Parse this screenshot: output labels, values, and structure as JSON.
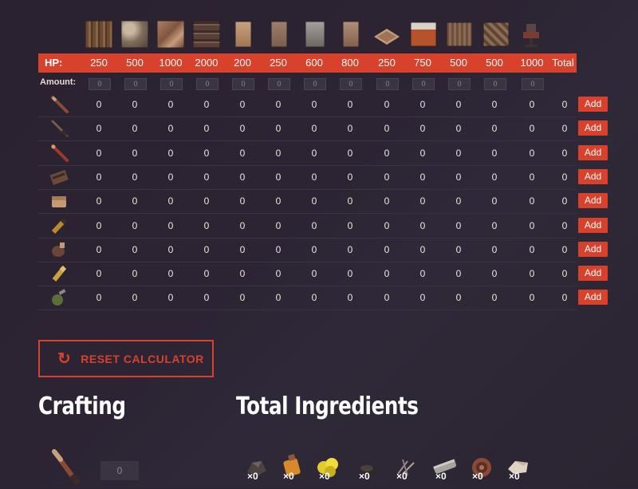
{
  "columns": [
    {
      "icon": "wood-wall-icon",
      "hp": "250",
      "amount": "0"
    },
    {
      "icon": "stone-wall-icon",
      "hp": "500",
      "amount": "0"
    },
    {
      "icon": "metal-wall-icon",
      "hp": "1000",
      "amount": "0"
    },
    {
      "icon": "armored-wall-icon",
      "hp": "2000",
      "amount": "0"
    },
    {
      "icon": "wooden-door-icon",
      "hp": "200",
      "amount": "0"
    },
    {
      "icon": "sheet-metal-door-icon",
      "hp": "250",
      "amount": "0"
    },
    {
      "icon": "garage-door-icon",
      "hp": "600",
      "amount": "0"
    },
    {
      "icon": "armored-door-icon",
      "hp": "800",
      "amount": "0"
    },
    {
      "icon": "floor-hatch-icon",
      "hp": "250",
      "amount": "0"
    },
    {
      "icon": "high-gate-icon",
      "hp": "750",
      "amount": "0"
    },
    {
      "icon": "high-wood-wall-icon",
      "hp": "500",
      "amount": "0"
    },
    {
      "icon": "high-stone-wall-icon",
      "hp": "500",
      "amount": "0"
    },
    {
      "icon": "auto-turret-icon",
      "hp": "1000",
      "amount": "0"
    }
  ],
  "header": {
    "hp_label": "HP:",
    "total_label": "Total",
    "amount_label": "Amount:"
  },
  "rows": [
    {
      "icon": "rocket-icon",
      "values": [
        "0",
        "0",
        "0",
        "0",
        "0",
        "0",
        "0",
        "0",
        "0",
        "0",
        "0",
        "0",
        "0"
      ],
      "total": "0",
      "add_label": "Add"
    },
    {
      "icon": "hv-rocket-icon",
      "values": [
        "0",
        "0",
        "0",
        "0",
        "0",
        "0",
        "0",
        "0",
        "0",
        "0",
        "0",
        "0",
        "0"
      ],
      "total": "0",
      "add_label": "Add"
    },
    {
      "icon": "incendiary-rocket-icon",
      "values": [
        "0",
        "0",
        "0",
        "0",
        "0",
        "0",
        "0",
        "0",
        "0",
        "0",
        "0",
        "0",
        "0"
      ],
      "total": "0",
      "add_label": "Add"
    },
    {
      "icon": "timed-explosive-icon",
      "values": [
        "0",
        "0",
        "0",
        "0",
        "0",
        "0",
        "0",
        "0",
        "0",
        "0",
        "0",
        "0",
        "0"
      ],
      "total": "0",
      "add_label": "Add"
    },
    {
      "icon": "satchel-charge-icon",
      "values": [
        "0",
        "0",
        "0",
        "0",
        "0",
        "0",
        "0",
        "0",
        "0",
        "0",
        "0",
        "0",
        "0"
      ],
      "total": "0",
      "add_label": "Add"
    },
    {
      "icon": "explosive-ammo-icon",
      "values": [
        "0",
        "0",
        "0",
        "0",
        "0",
        "0",
        "0",
        "0",
        "0",
        "0",
        "0",
        "0",
        "0"
      ],
      "total": "0",
      "add_label": "Add"
    },
    {
      "icon": "beancan-grenade-icon",
      "values": [
        "0",
        "0",
        "0",
        "0",
        "0",
        "0",
        "0",
        "0",
        "0",
        "0",
        "0",
        "0",
        "0"
      ],
      "total": "0",
      "add_label": "Add"
    },
    {
      "icon": "hv-ammo-icon",
      "values": [
        "0",
        "0",
        "0",
        "0",
        "0",
        "0",
        "0",
        "0",
        "0",
        "0",
        "0",
        "0",
        "0"
      ],
      "total": "0",
      "add_label": "Add"
    },
    {
      "icon": "f1-grenade-icon",
      "values": [
        "0",
        "0",
        "0",
        "0",
        "0",
        "0",
        "0",
        "0",
        "0",
        "0",
        "0",
        "0",
        "0"
      ],
      "total": "0",
      "add_label": "Add"
    }
  ],
  "reset": {
    "label": "RESET CALCULATOR"
  },
  "crafting": {
    "title": "Crafting",
    "item_icon": "rocket-icon",
    "quantity": "0"
  },
  "ingredients": {
    "title": "Total Ingredients",
    "items": [
      {
        "icon": "charcoal-icon",
        "count": "×0"
      },
      {
        "icon": "low-grade-fuel-icon",
        "count": "×0"
      },
      {
        "icon": "sulfur-icon",
        "count": "×0"
      },
      {
        "icon": "gunpowder-icon",
        "count": "×0"
      },
      {
        "icon": "metal-fragments-icon",
        "count": "×0"
      },
      {
        "icon": "metal-pipe-icon",
        "count": "×0"
      },
      {
        "icon": "tech-trash-icon",
        "count": "×0"
      },
      {
        "icon": "cloth-icon",
        "count": "×0"
      }
    ]
  },
  "colors": {
    "accent": "#d8412c",
    "background": "#2b2431"
  }
}
